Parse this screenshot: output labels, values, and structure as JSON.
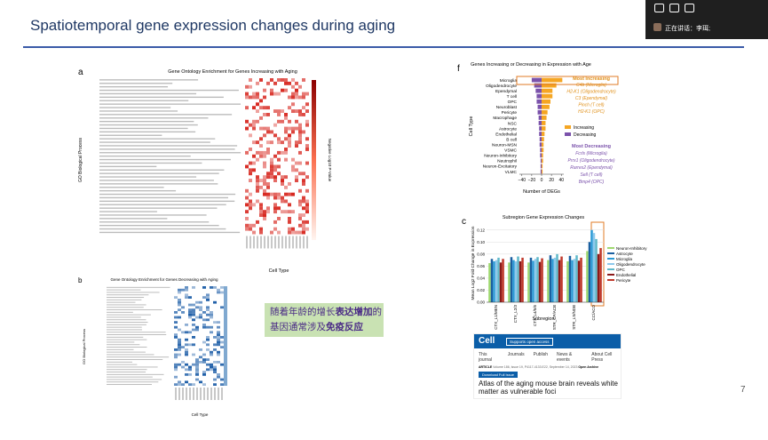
{
  "toolbar": {
    "speaking": "正在讲话：李珥;"
  },
  "slide": {
    "title": "Spatiotemporal gene expression changes during aging",
    "page_number": "7"
  },
  "panel_a": {
    "label": "a",
    "title": "Gene Ontology Enrichment for Genes Increasing with Aging",
    "y_label": "GO Biological Process",
    "x_label": "Cell Type",
    "colorbar_label": "Negative Log10 P-Value"
  },
  "panel_b": {
    "label": "b",
    "title": "Gene Ontology Enrichment for Genes Decreasing with Aging",
    "y_label": "GO Biological Process",
    "x_label": "Cell Type"
  },
  "callout": {
    "segments": [
      {
        "text": "随着年龄的增长",
        "bold": false
      },
      {
        "text": "表达增加",
        "bold": true
      },
      {
        "text": "的基因通常涉及",
        "bold": false
      },
      {
        "text": "免疫反应",
        "bold": true
      }
    ]
  },
  "article": {
    "logo": "Cell",
    "open_access": "Supports open access",
    "nav": [
      "This journal",
      "Journals",
      "Publish",
      "News & events",
      "About Cell Press"
    ],
    "meta_type": "ARTICLE",
    "meta": "Volume 186, Issue 19, P4117-4133.E22, September 14, 2023",
    "archive": "Open Archive",
    "download": "Download Full Issue",
    "title": "Atlas of the aging mouse brain reveals white matter as vulnerable foci"
  },
  "chart_data": [
    {
      "type": "hbar",
      "label": "f",
      "title": "Genes Increasing or Decreasing in Expression with Age",
      "y_label": "Cell Type",
      "x_label": "Number of DEGs",
      "categories": [
        "Microglia",
        "Oligodendrocyte",
        "Ependymal",
        "T cell",
        "OPC",
        "Neuroblast",
        "Pericyte",
        "Macrophage",
        "NSC",
        "Astrocyte",
        "Endothelial",
        "B cell",
        "Neuron-MSN",
        "VSMC",
        "Neuron-Inhibitory",
        "Neutrophil",
        "Neuron-Excitatory",
        "VLMC"
      ],
      "series": [
        {
          "name": "Increasing",
          "color": "#f5a623",
          "values": [
            42,
            30,
            22,
            22,
            18,
            16,
            12,
            10,
            8,
            8,
            6,
            5,
            4,
            4,
            3,
            3,
            2,
            2
          ]
        },
        {
          "name": "Decreasing",
          "color": "#7b52ab",
          "values": [
            -20,
            -15,
            -12,
            -10,
            -10,
            -8,
            -8,
            -6,
            -6,
            -5,
            -5,
            -4,
            -4,
            -3,
            -3,
            -2,
            -2,
            -2
          ]
        }
      ],
      "xlim": [
        -45,
        45
      ],
      "xticks": [
        {
          "value": -40,
          "label": "−40"
        },
        {
          "value": -20,
          "label": "−20"
        },
        0,
        20,
        40
      ],
      "annotations": {
        "increasing_title": "Most Increasing",
        "increasing": [
          "C4b (Microglia)",
          "H2-K1 (Oligodendrocyte)",
          "C3 (Ependymal)",
          "Pinch (T cell)",
          "H2-K1 (OPC)"
        ],
        "decreasing_title": "Most Decreasing",
        "decreasing": [
          "Fcrls (Microglia)",
          "Prrx1 (Oligodendrocyte)",
          "Rarres2 (Ependymal)",
          "Sell (T cell)",
          "Bmp4 (OPC)"
        ]
      }
    },
    {
      "type": "bar",
      "label": "c",
      "title": "Subregion Gene Expression Changes",
      "y_label": "Mean Log2 Fold Change in Expression",
      "x_label": "Subregion",
      "categories": [
        "CTX_L1/MEN",
        "CTX_L2/3",
        "CTX_L4/5/6",
        "STR_CP/ACB",
        "STR_LS/NDB",
        "CC/ACO"
      ],
      "series": [
        {
          "name": "Neuron-Inhibitory",
          "color": "#9fd86f",
          "values": [
            0.065,
            0.066,
            0.066,
            0.07,
            0.068,
            0.085
          ]
        },
        {
          "name": "Astrocyte",
          "color": "#1a5fa0",
          "values": [
            0.072,
            0.075,
            0.074,
            0.078,
            0.077,
            0.1
          ]
        },
        {
          "name": "Microglia",
          "color": "#2b9ad6",
          "values": [
            0.068,
            0.07,
            0.069,
            0.072,
            0.07,
            0.12
          ]
        },
        {
          "name": "Oligodendrocyte",
          "color": "#8ec9ec",
          "values": [
            0.07,
            0.068,
            0.072,
            0.074,
            0.072,
            0.115
          ]
        },
        {
          "name": "OPC",
          "color": "#5fb8c9",
          "values": [
            0.074,
            0.076,
            0.075,
            0.08,
            0.078,
            0.105
          ]
        },
        {
          "name": "Endothelial",
          "color": "#8b1a1a",
          "values": [
            0.066,
            0.068,
            0.067,
            0.07,
            0.069,
            0.08
          ]
        },
        {
          "name": "Pericyte",
          "color": "#c0392b",
          "values": [
            0.072,
            0.074,
            0.073,
            0.076,
            0.074,
            0.09
          ]
        }
      ],
      "ylim": [
        0,
        0.13
      ],
      "yticks": [
        {
          "value": 0,
          "label": "0.00"
        },
        {
          "value": 0.02,
          "label": "0.02"
        },
        {
          "value": 0.04,
          "label": "0.04"
        },
        {
          "value": 0.06,
          "label": "0.06"
        },
        {
          "value": 0.08,
          "label": "0.08"
        },
        {
          "value": 0.1,
          "label": "0.10"
        },
        {
          "value": 0.12,
          "label": "0.12"
        }
      ]
    }
  ]
}
